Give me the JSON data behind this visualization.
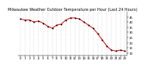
{
  "title": "Milwaukee Weather Outdoor Temperature per Hour (Last 24 Hours)",
  "hours": [
    0,
    1,
    2,
    3,
    4,
    5,
    6,
    7,
    8,
    9,
    10,
    11,
    12,
    13,
    14,
    15,
    16,
    17,
    18,
    19,
    20,
    21,
    22,
    23
  ],
  "temps": [
    43,
    42,
    42,
    40,
    41,
    39,
    36,
    34,
    37,
    38,
    42,
    44,
    44,
    43,
    40,
    37,
    34,
    29,
    23,
    17,
    13,
    12,
    13,
    12
  ],
  "line_color": "#dd0000",
  "marker_color": "#000000",
  "bg_color": "#ffffff",
  "grid_color": "#bbbbbb",
  "title_color": "#000000",
  "title_fontsize": 3.5,
  "tick_fontsize": 2.8,
  "ylim": [
    8,
    50
  ],
  "yticks": [
    10,
    15,
    20,
    25,
    30,
    35,
    40,
    45
  ],
  "xtick_labels": [
    "0",
    "1",
    "2",
    "3",
    "4",
    "5",
    "6",
    "7",
    "8",
    "9",
    "10",
    "11",
    "12",
    "13",
    "14",
    "15",
    "16",
    "17",
    "18",
    "19",
    "20",
    "21",
    "22",
    "23"
  ]
}
